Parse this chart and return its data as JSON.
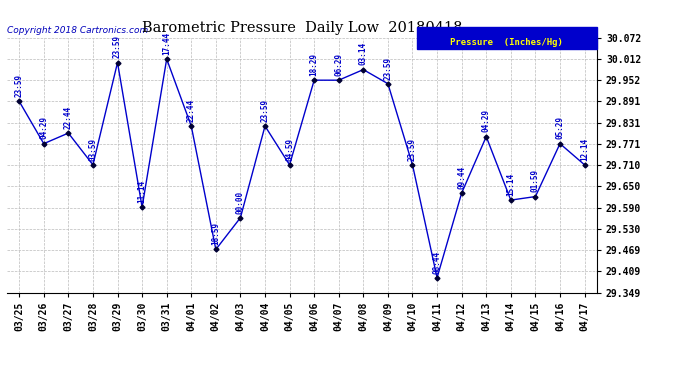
{
  "title": "Barometric Pressure  Daily Low  20180418",
  "copyright": "Copyright 2018 Cartronics.com",
  "legend_label": "Pressure  (Inches/Hg)",
  "background_color": "#ffffff",
  "plot_background": "#ffffff",
  "line_color": "#0000cc",
  "marker_color": "#000033",
  "grid_color": "#bbbbbb",
  "dates": [
    "03/25",
    "03/26",
    "03/27",
    "03/28",
    "03/29",
    "03/30",
    "03/31",
    "04/01",
    "04/02",
    "04/03",
    "04/04",
    "04/05",
    "04/06",
    "04/07",
    "04/08",
    "04/09",
    "04/10",
    "04/11",
    "04/12",
    "04/13",
    "04/14",
    "04/15",
    "04/16",
    "04/17"
  ],
  "values": [
    29.891,
    29.771,
    29.801,
    29.711,
    30.001,
    29.591,
    30.011,
    29.821,
    29.471,
    29.561,
    29.821,
    29.711,
    29.951,
    29.951,
    29.981,
    29.941,
    29.711,
    29.391,
    29.631,
    29.791,
    29.611,
    29.621,
    29.771,
    29.711
  ],
  "time_labels": [
    "23:59",
    "04:29",
    "22:44",
    "03:59",
    "23:59",
    "11:14",
    "17:44",
    "22:44",
    "18:59",
    "00:00",
    "23:59",
    "04:59",
    "18:29",
    "06:29",
    "03:14",
    "23:59",
    "23:59",
    "08:44",
    "09:44",
    "04:29",
    "15:14",
    "01:59",
    "05:29",
    "12:14"
  ],
  "ylim": [
    29.349,
    30.072
  ],
  "yticks": [
    29.349,
    29.409,
    29.469,
    29.53,
    29.59,
    29.65,
    29.71,
    29.771,
    29.831,
    29.891,
    29.952,
    30.012,
    30.072
  ]
}
